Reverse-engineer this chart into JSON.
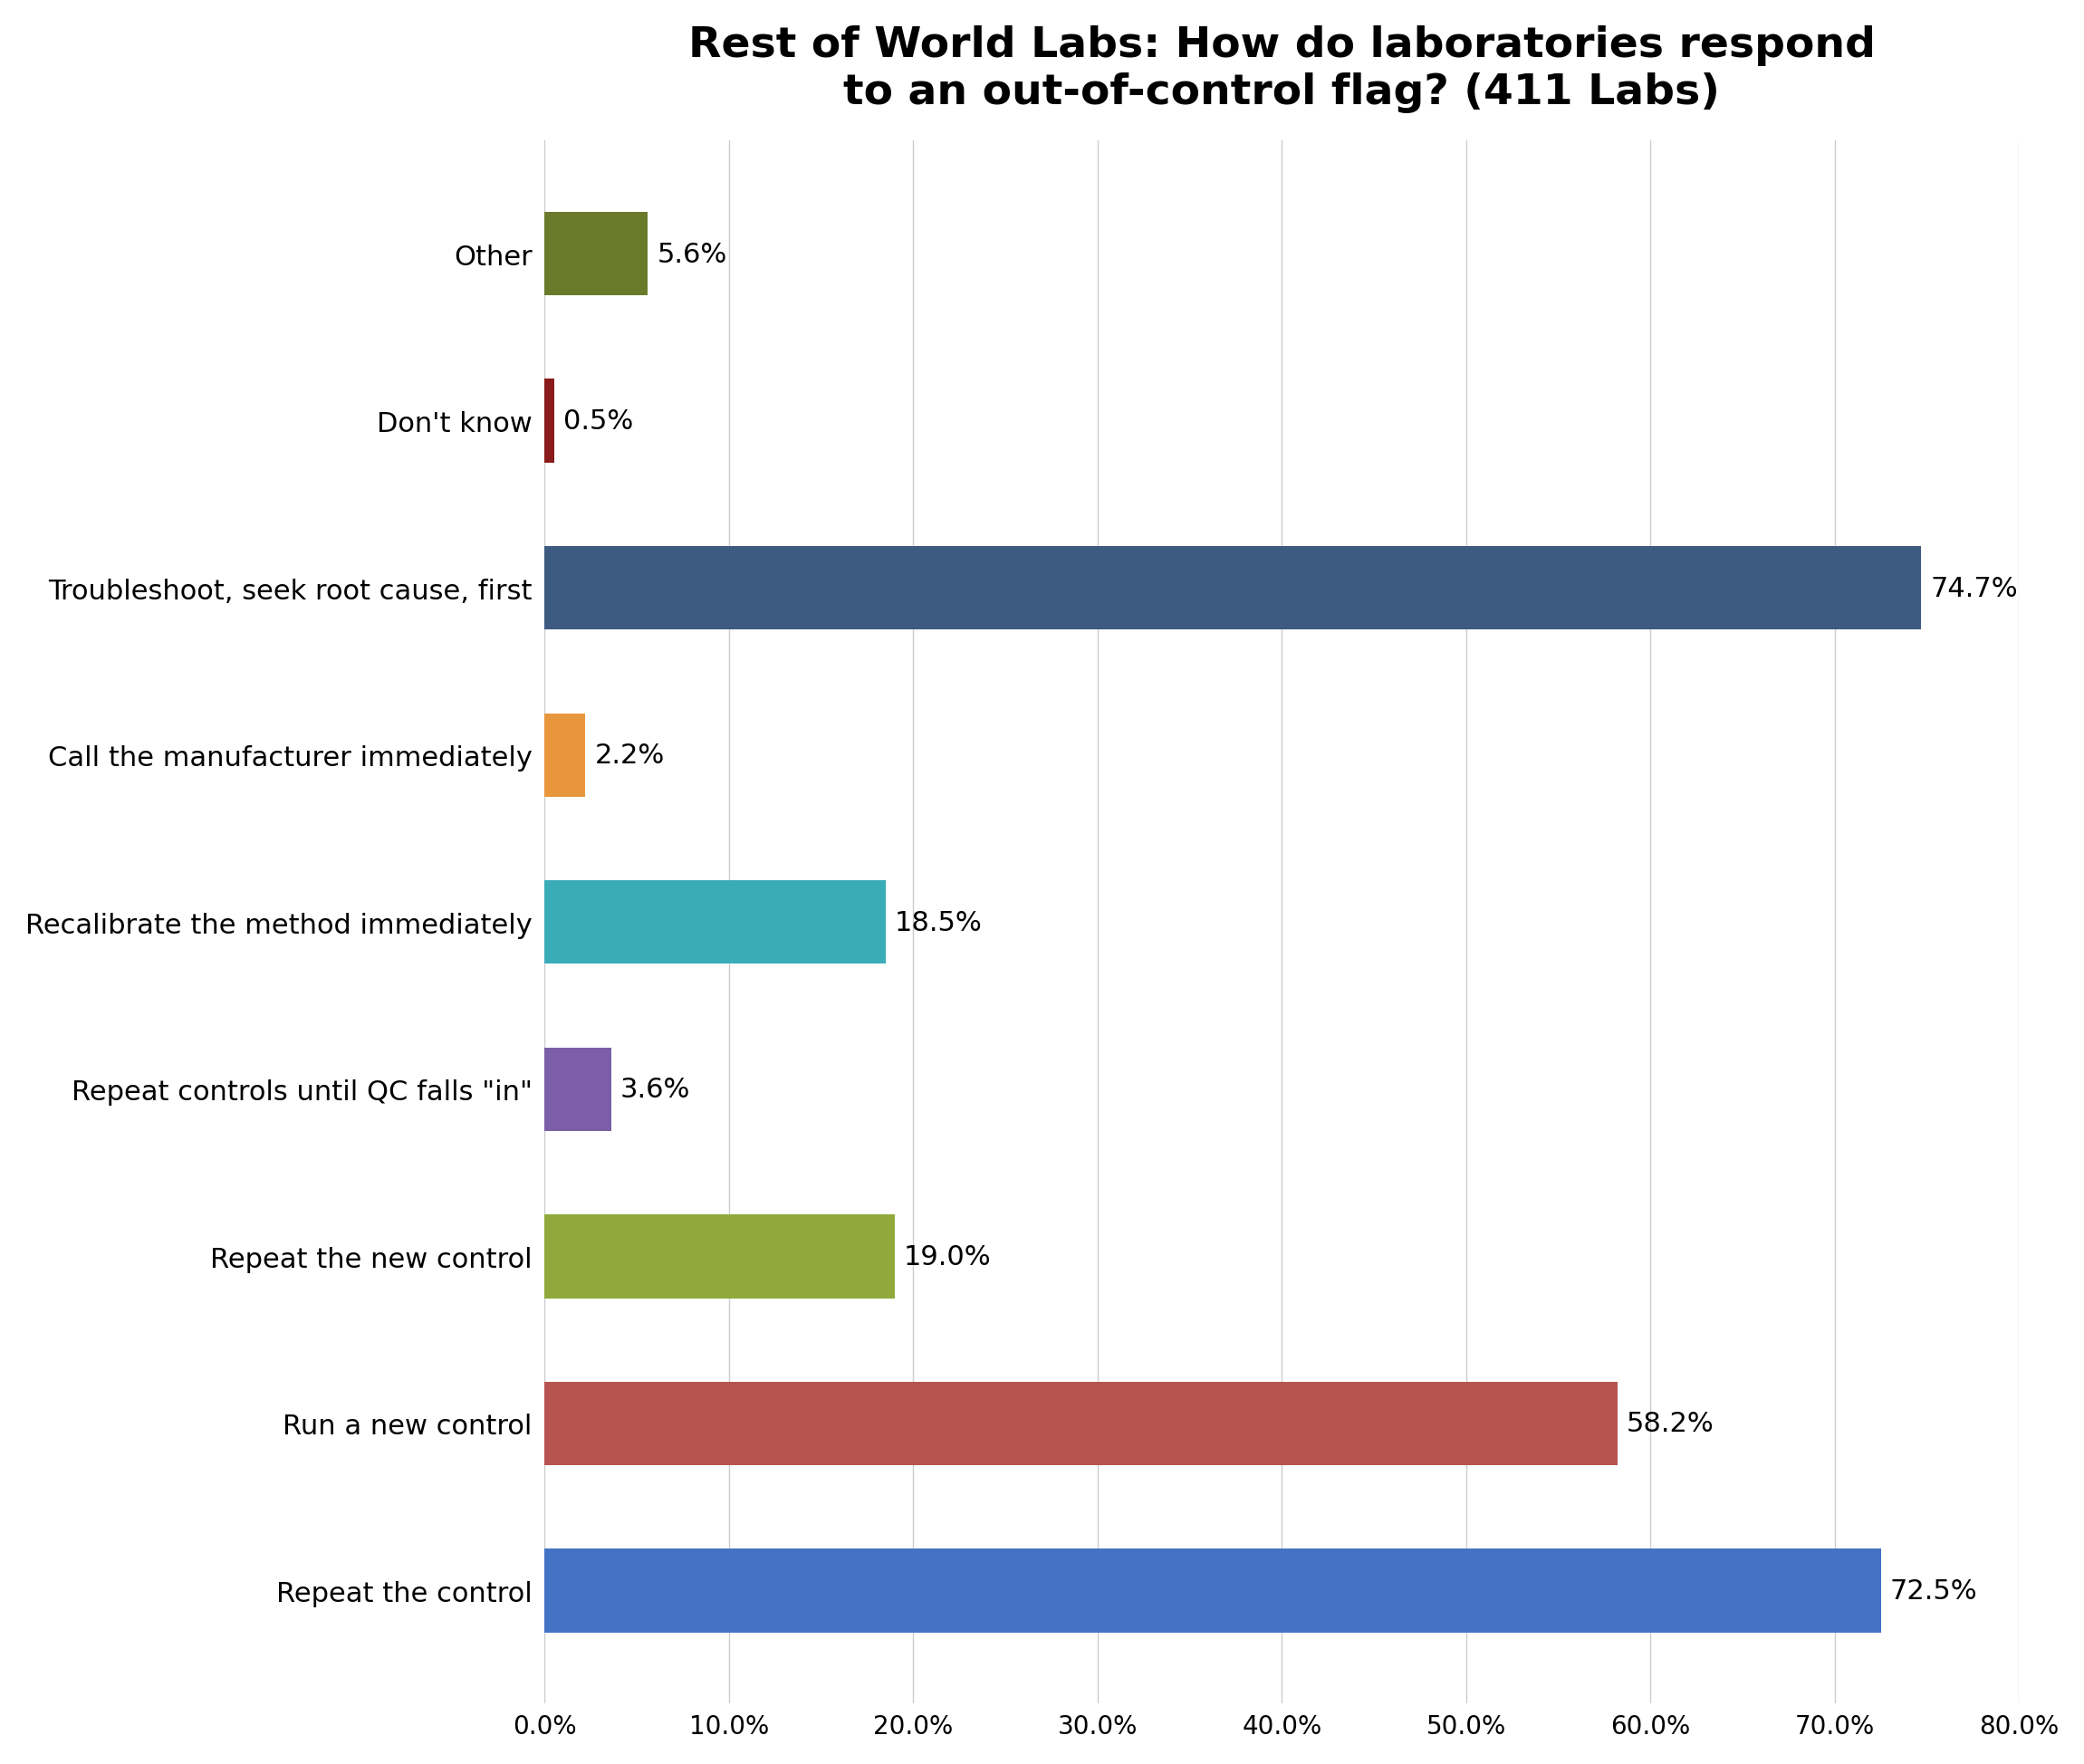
{
  "title": "Rest of World Labs: How do laboratories respond\nto an out-of-control flag? (411 Labs)",
  "categories_top_to_bottom": [
    "Other",
    "Don't know",
    "Troubleshoot, seek root cause, first",
    "Call the manufacturer immediately",
    "Recalibrate the method immediately",
    "Repeat controls until QC falls \"in\"",
    "Repeat the new control",
    "Run a new control",
    "Repeat the control"
  ],
  "values_top_to_bottom": [
    5.6,
    0.5,
    74.7,
    2.2,
    18.5,
    3.6,
    19.0,
    58.2,
    72.5
  ],
  "colors_top_to_bottom": [
    "#6b7a2a",
    "#8b1a1a",
    "#3d5a80",
    "#e8963c",
    "#3aacb8",
    "#7b5ea7",
    "#8faa3a",
    "#b85450",
    "#4472c4"
  ],
  "xlim": [
    0,
    80
  ],
  "xticks": [
    0,
    10,
    20,
    30,
    40,
    50,
    60,
    70,
    80
  ],
  "bar_height": 0.5,
  "label_fontsize": 22,
  "tick_fontsize": 20,
  "title_fontsize": 34,
  "value_fontsize": 22,
  "background_color": "#ffffff",
  "grid_color": "#cccccc"
}
